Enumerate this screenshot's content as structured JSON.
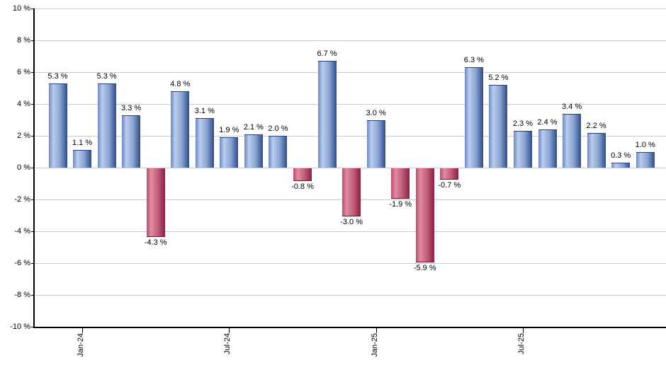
{
  "chart": {
    "background": "#ffffff",
    "grid_color": "#c9c9c9",
    "axis_color": "#000000",
    "text_color": "#000000"
  },
  "chart_data": {
    "type": "bar",
    "title": "",
    "xlabel": "",
    "ylabel": "",
    "ylim": [
      -10,
      10
    ],
    "y_tick_step": 2,
    "grid": true,
    "legend": null,
    "y_tick_labels": [
      "10 %",
      "8 %",
      "6 %",
      "4 %",
      "2 %",
      "0 %",
      "-2 %",
      "-4 %",
      "-6 %",
      "-8 %",
      "-10 %"
    ],
    "x_tick_labels": [
      {
        "label": "Jan-24",
        "bar_index": 1
      },
      {
        "label": "Jul-24",
        "bar_index": 7
      },
      {
        "label": "Jan-25",
        "bar_index": 13
      },
      {
        "label": "Jul-25",
        "bar_index": 19
      }
    ],
    "values": [
      5.3,
      1.1,
      5.3,
      3.3,
      -4.3,
      4.8,
      3.1,
      1.9,
      2.1,
      2.0,
      -0.8,
      6.7,
      -3.0,
      3.0,
      -1.9,
      -5.9,
      -0.7,
      6.3,
      5.2,
      2.3,
      2.4,
      3.4,
      2.2,
      0.3,
      1.0
    ],
    "bar_labels": [
      "5.3 %",
      "1.1 %",
      "5.3 %",
      "3.3 %",
      "-4.3 %",
      "4.8 %",
      "3.1 %",
      "1.9 %",
      "2.1 %",
      "2.0 %",
      "-0.8 %",
      "6.7 %",
      "-3.0 %",
      "3.0 %",
      "-1.9 %",
      "-5.9 %",
      "-0.7 %",
      "6.3 %",
      "5.2 %",
      "2.3 %",
      "2.4 %",
      "3.4 %",
      "2.2 %",
      "0.3 %",
      "1.0 %"
    ],
    "positive_color": {
      "edge_left": "#6a89c4",
      "light": "#b9cdee",
      "mid": "#8aa5d2",
      "edge_right": "#2e4c8c",
      "border": "#27437f"
    },
    "negative_color": {
      "edge_left": "#bf4a68",
      "light": "#e08ca1",
      "mid": "#c35e7c",
      "edge_right": "#8c1f42",
      "border": "#701733"
    }
  }
}
